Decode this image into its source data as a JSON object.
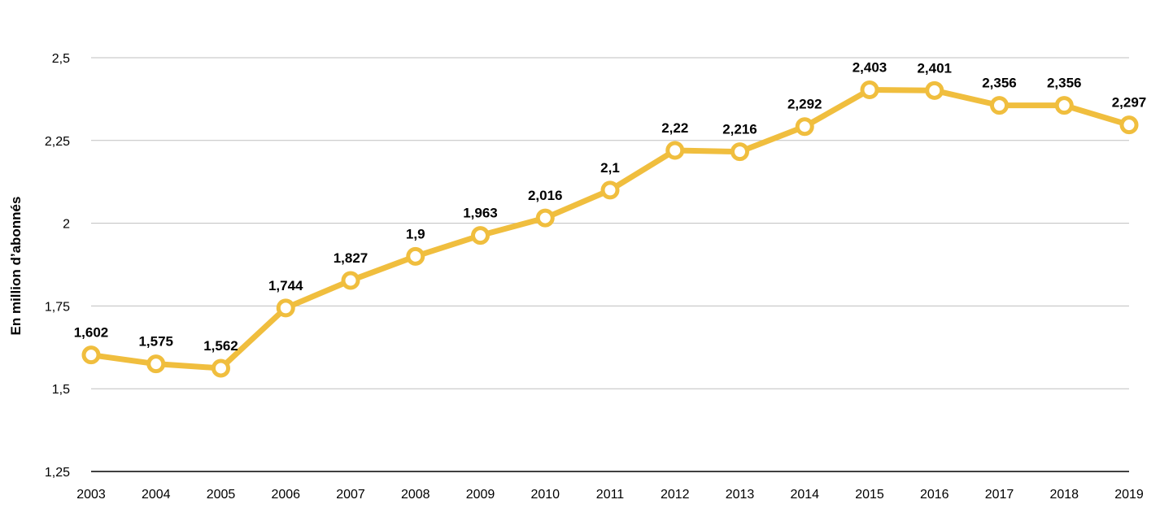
{
  "chart_data": {
    "type": "line",
    "title": "",
    "xlabel": "",
    "ylabel": "En million d’abonnés",
    "ylim": [
      1.25,
      2.5
    ],
    "yticks": [
      {
        "value": 1.25,
        "label": "1,25"
      },
      {
        "value": 1.5,
        "label": "1,5"
      },
      {
        "value": 1.75,
        "label": "1,75"
      },
      {
        "value": 2.0,
        "label": "2"
      },
      {
        "value": 2.25,
        "label": "2,25"
      },
      {
        "value": 2.5,
        "label": "2,5"
      }
    ],
    "grid": true,
    "legend": "none",
    "line_color": "#F0BE3E",
    "categories": [
      "2003",
      "2004",
      "2005",
      "2006",
      "2007",
      "2008",
      "2009",
      "2010",
      "2011",
      "2012",
      "2013",
      "2014",
      "2015",
      "2016",
      "2017",
      "2018",
      "2019"
    ],
    "series": [
      {
        "values": [
          1.602,
          1.575,
          1.562,
          1.744,
          1.827,
          1.9,
          1.963,
          2.016,
          2.1,
          2.22,
          2.216,
          2.292,
          2.403,
          2.401,
          2.356,
          2.356,
          2.297
        ],
        "labels": [
          "1,602",
          "1,575",
          "1,562",
          "1,744",
          "1,827",
          "1,9",
          "1,963",
          "2,016",
          "2,1",
          "2,22",
          "2,216",
          "2,292",
          "2,403",
          "2,401",
          "2,356",
          "2,356",
          "2,297"
        ]
      }
    ]
  }
}
